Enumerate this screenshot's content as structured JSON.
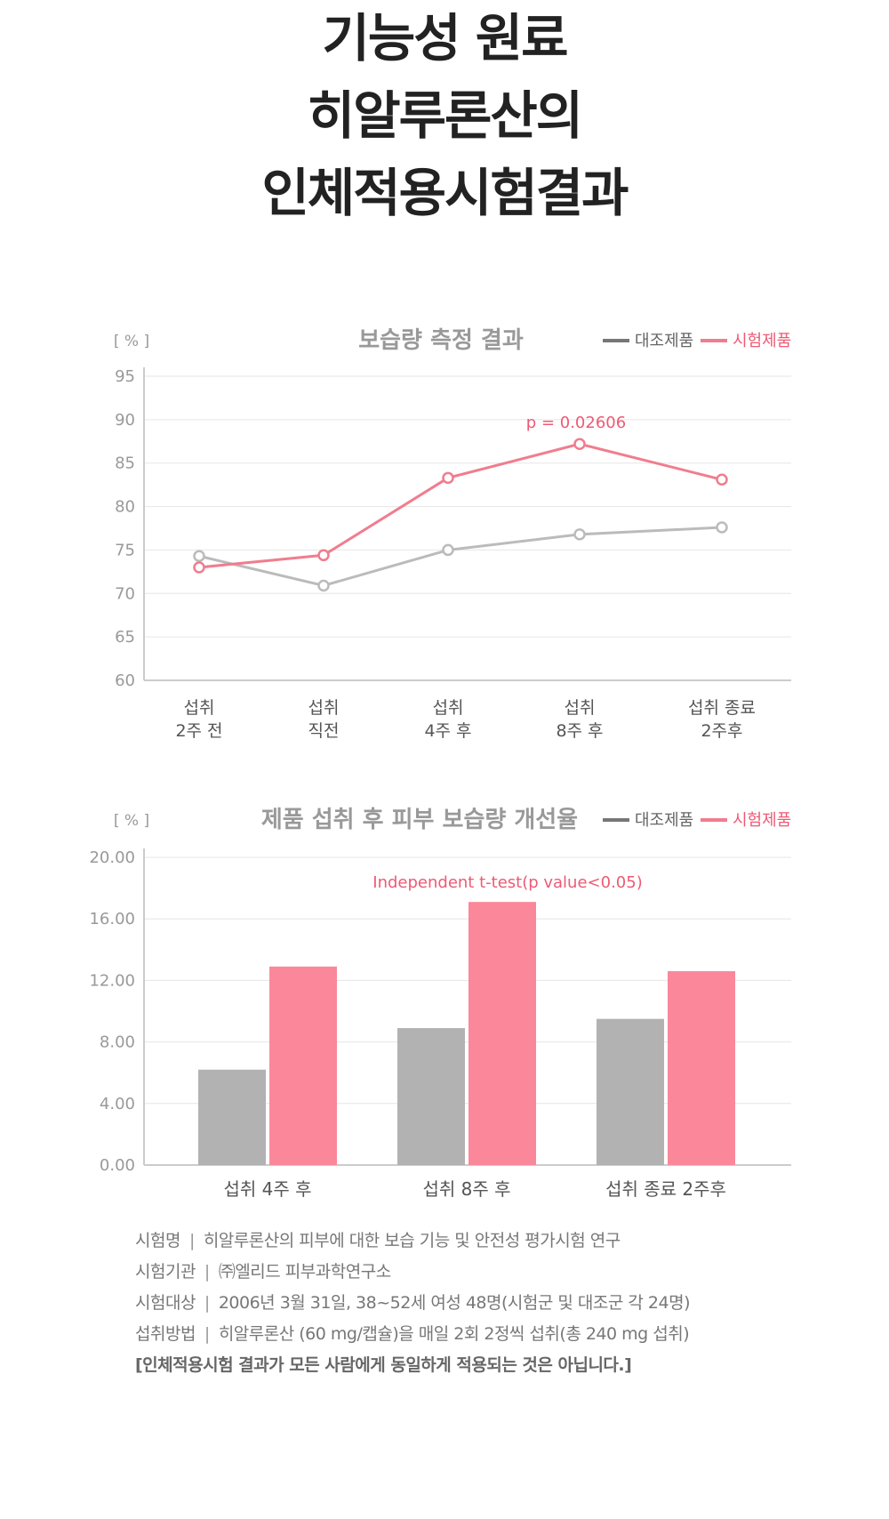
{
  "page": {
    "title_lines": [
      "기능성 원료",
      "히알루론산의",
      "인체적용시험결과"
    ]
  },
  "chart_data": [
    {
      "type": "line",
      "title": "보습량 측정 결과",
      "unit_label": "[ % ]",
      "categories": [
        [
          "섭취",
          "2주 전"
        ],
        [
          "섭취",
          "직전"
        ],
        [
          "섭취",
          "4주 후"
        ],
        [
          "섭취",
          "8주 후"
        ],
        [
          "섭취 종료",
          "2주후"
        ]
      ],
      "series": [
        {
          "name": "대조제품",
          "color": "#bbbbbb",
          "values": [
            74.3,
            70.9,
            75.0,
            76.8,
            77.6
          ]
        },
        {
          "name": "시험제품",
          "color": "#f07d8e",
          "values": [
            73.0,
            74.4,
            83.3,
            87.2,
            83.1
          ]
        }
      ],
      "ylim": [
        60,
        95
      ],
      "yticks": [
        "60",
        "65",
        "70",
        "75",
        "80",
        "85",
        "90",
        "95"
      ],
      "annotation": {
        "text": "p = 0.02606",
        "category_index": 3,
        "series_index": 1
      },
      "legend_position": "top-right",
      "grid": true
    },
    {
      "type": "bar",
      "title": "제품 섭취 후 피부 보습량 개선율",
      "unit_label": "[ % ]",
      "categories": [
        "섭취 4주 후",
        "섭취 8주 후",
        "섭취 종료 2주후"
      ],
      "series": [
        {
          "name": "대조제품",
          "color": "#b2b2b2",
          "values": [
            6.2,
            8.9,
            9.5
          ]
        },
        {
          "name": "시험제품",
          "color": "#fa889a",
          "values": [
            12.9,
            17.1,
            12.6
          ]
        }
      ],
      "ylim": [
        0,
        20
      ],
      "yticks": [
        "0.00",
        "4.00",
        "8.00",
        "12.00",
        "16.00",
        "20.00"
      ],
      "annotation": {
        "text": "Independent t-test(p value<0.05)",
        "category_index": 1,
        "series_index": 1
      },
      "legend_position": "top-right",
      "grid": true
    }
  ],
  "legend_colors": {
    "control_line": "#777777",
    "test_line": "#f07d8e",
    "test_text": "#ee5a74"
  },
  "study_info": [
    {
      "label": "시험명",
      "value": "히알루론산의 피부에 대한 보습 기능 및 안전성 평가시험 연구"
    },
    {
      "label": "시험기관",
      "value": "㈜엘리드 피부과학연구소"
    },
    {
      "label": "시험대상",
      "value": "2006년 3월 31일, 38~52세 여성 48명(시험군 및 대조군 각 24명)"
    },
    {
      "label": "섭취방법",
      "value": "히알루론산 (60 mg/캡슐)을 매일 2회 2정씩 섭취(총 240 mg 섭취)"
    }
  ],
  "separator": "|",
  "disclaimer": "[인체적용시험 결과가 모든 사람에게 동일하게 적용되는 것은 아닙니다.]"
}
